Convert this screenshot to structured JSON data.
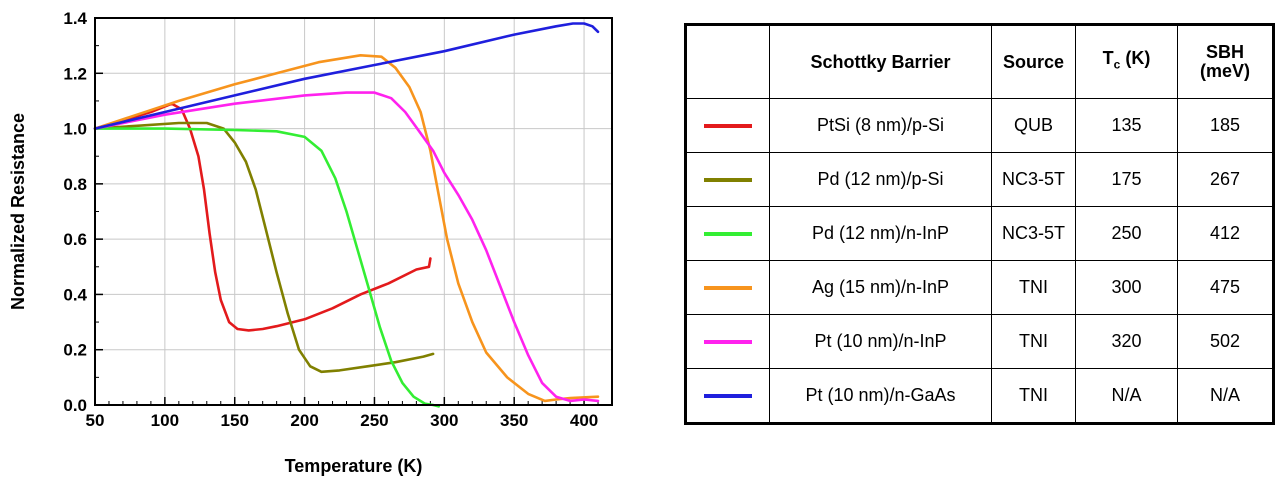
{
  "chart_data": {
    "type": "line",
    "xlabel": "Temperature (K)",
    "ylabel": "Normalized Resistance",
    "xlim": [
      50,
      420
    ],
    "ylim": [
      0,
      1.4
    ],
    "xticks": [
      "50",
      "100",
      "150",
      "200",
      "250",
      "300",
      "350",
      "400"
    ],
    "yticks": [
      "0.0",
      "0.2",
      "0.4",
      "0.6",
      "0.8",
      "1.0",
      "1.2",
      "1.4"
    ],
    "grid": true,
    "series": [
      {
        "name": "PtSi (8 nm)/p-Si",
        "color": "#e31a1c",
        "x": [
          50,
          70,
          90,
          105,
          112,
          118,
          124,
          128,
          132,
          136,
          140,
          146,
          152,
          160,
          170,
          180,
          200,
          220,
          240,
          260,
          280,
          289,
          290
        ],
        "y": [
          1.0,
          1.03,
          1.06,
          1.09,
          1.07,
          1.0,
          0.9,
          0.78,
          0.62,
          0.48,
          0.38,
          0.3,
          0.275,
          0.27,
          0.275,
          0.285,
          0.31,
          0.35,
          0.4,
          0.44,
          0.49,
          0.5,
          0.53
        ]
      },
      {
        "name": "Pd (12 nm)/p-Si",
        "color": "#808000",
        "x": [
          50,
          80,
          110,
          130,
          142,
          150,
          158,
          165,
          172,
          180,
          188,
          196,
          204,
          212,
          225,
          245,
          265,
          285,
          292
        ],
        "y": [
          1.0,
          1.01,
          1.02,
          1.02,
          1.0,
          0.95,
          0.88,
          0.78,
          0.64,
          0.48,
          0.33,
          0.2,
          0.14,
          0.12,
          0.125,
          0.14,
          0.155,
          0.175,
          0.185
        ]
      },
      {
        "name": "Pd (12 nm)/n-InP",
        "color": "#33ee33",
        "x": [
          50,
          100,
          150,
          180,
          200,
          212,
          222,
          230,
          238,
          246,
          254,
          262,
          270,
          278,
          286,
          292,
          296
        ],
        "y": [
          1.0,
          1.0,
          0.995,
          0.99,
          0.97,
          0.92,
          0.82,
          0.7,
          0.56,
          0.42,
          0.28,
          0.16,
          0.08,
          0.03,
          0.005,
          0.0,
          -0.005
        ]
      },
      {
        "name": "Ag (15 nm)/n-InP",
        "color": "#f7941d",
        "x": [
          50,
          80,
          110,
          150,
          180,
          210,
          240,
          255,
          265,
          275,
          283,
          290,
          296,
          302,
          310,
          320,
          330,
          345,
          360,
          372,
          380,
          390,
          410
        ],
        "y": [
          1.0,
          1.05,
          1.1,
          1.16,
          1.2,
          1.24,
          1.265,
          1.26,
          1.22,
          1.15,
          1.06,
          0.92,
          0.76,
          0.6,
          0.44,
          0.3,
          0.19,
          0.1,
          0.04,
          0.015,
          0.02,
          0.025,
          0.03
        ]
      },
      {
        "name": "Pt (10 nm)/n-InP",
        "color": "#ff22ee",
        "x": [
          50,
          100,
          150,
          200,
          230,
          250,
          262,
          272,
          282,
          292,
          300,
          310,
          320,
          330,
          340,
          350,
          360,
          370,
          380,
          390,
          400,
          410
        ],
        "y": [
          1.0,
          1.05,
          1.09,
          1.12,
          1.13,
          1.13,
          1.11,
          1.06,
          0.99,
          0.92,
          0.84,
          0.76,
          0.67,
          0.56,
          0.43,
          0.3,
          0.18,
          0.08,
          0.03,
          0.015,
          0.02,
          0.015
        ]
      },
      {
        "name": "Pt (10 nm)/n-GaAs",
        "color": "#1f1fdd",
        "x": [
          50,
          100,
          150,
          200,
          250,
          300,
          350,
          380,
          392,
          400,
          406,
          410
        ],
        "y": [
          1.0,
          1.06,
          1.12,
          1.18,
          1.23,
          1.28,
          1.34,
          1.37,
          1.38,
          1.38,
          1.37,
          1.35
        ]
      }
    ]
  },
  "table": {
    "headers": {
      "barrier": "Schottky Barrier",
      "source": "Source",
      "tc_main": "T",
      "tc_sub": "c",
      "tc_unit": " (K)",
      "sbh_line1": "SBH",
      "sbh_line2": "(meV)"
    },
    "rows": [
      {
        "color": "#e31a1c",
        "barrier": "PtSi (8 nm)/p-Si",
        "source": "QUB",
        "tc": "135",
        "sbh": "185"
      },
      {
        "color": "#808000",
        "barrier": "Pd (12 nm)/p-Si",
        "source": "NC3-5T",
        "tc": "175",
        "sbh": "267"
      },
      {
        "color": "#33ee33",
        "barrier": "Pd (12 nm)/n-InP",
        "source": "NC3-5T",
        "tc": "250",
        "sbh": "412"
      },
      {
        "color": "#f7941d",
        "barrier": "Ag (15 nm)/n-InP",
        "source": "TNI",
        "tc": "300",
        "sbh": "475"
      },
      {
        "color": "#ff22ee",
        "barrier": "Pt (10 nm)/n-InP",
        "source": "TNI",
        "tc": "320",
        "sbh": "502"
      },
      {
        "color": "#1f1fdd",
        "barrier": "Pt (10 nm)/n-GaAs",
        "source": "TNI",
        "tc": "N/A",
        "sbh": "N/A"
      }
    ]
  }
}
